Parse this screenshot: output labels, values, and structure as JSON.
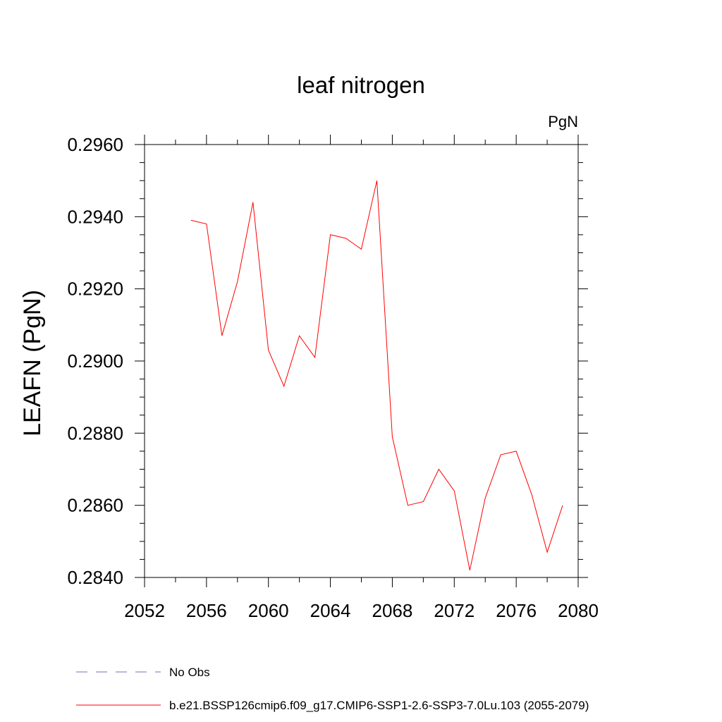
{
  "chart_data": {
    "type": "line",
    "title": "leaf nitrogen",
    "units": "PgN",
    "ylabel": "LEAFN  (PgN)",
    "xlabel": "",
    "xlim": [
      2052,
      2080
    ],
    "ylim": [
      0.284,
      0.296
    ],
    "x_ticks": [
      2052,
      2056,
      2060,
      2064,
      2068,
      2072,
      2076,
      2080
    ],
    "x_tick_labels": [
      "2052",
      "2056",
      "2060",
      "2064",
      "2068",
      "2072",
      "2076",
      "2080"
    ],
    "y_ticks": [
      0.284,
      0.286,
      0.288,
      0.29,
      0.292,
      0.294,
      0.296
    ],
    "y_tick_labels": [
      "0.2840",
      "0.2860",
      "0.2880",
      "0.2900",
      "0.2920",
      "0.2940",
      "0.2960"
    ],
    "grid": false,
    "series": [
      {
        "name": "b.e21.BSSP126cmip6.f09_g17.CMIP6-SSP1-2.6-SSP3-7.0Lu.103 (2055-2079)",
        "color": "#ff0000",
        "style": "solid",
        "x": [
          2055,
          2056,
          2057,
          2058,
          2059,
          2060,
          2061,
          2062,
          2063,
          2064,
          2065,
          2066,
          2067,
          2068,
          2069,
          2070,
          2071,
          2072,
          2073,
          2074,
          2075,
          2076,
          2077,
          2078,
          2079
        ],
        "values": [
          0.2939,
          0.2938,
          0.2907,
          0.2922,
          0.2944,
          0.2903,
          0.2893,
          0.2907,
          0.2901,
          0.2935,
          0.2934,
          0.2931,
          0.295,
          0.2879,
          0.286,
          0.2861,
          0.287,
          0.2864,
          0.2842,
          0.2862,
          0.2874,
          0.2875,
          0.2863,
          0.2847,
          0.286
        ]
      }
    ],
    "legend": [
      {
        "label": "No Obs",
        "color": "#7a6fb8",
        "style": "dashed"
      },
      {
        "label": "b.e21.BSSP126cmip6.f09_g17.CMIP6-SSP1-2.6-SSP3-7.0Lu.103 (2055-2079)",
        "color": "#ff0000",
        "style": "solid"
      }
    ]
  }
}
